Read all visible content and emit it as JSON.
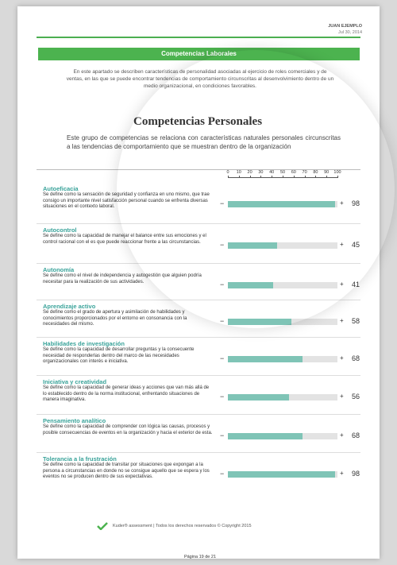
{
  "header": {
    "name": "JUAN EJEMPLO",
    "date": "Jul 30, 2014"
  },
  "banner": "Competencias Laborales",
  "intro": "En este apartado se describen características de personalidad asociadas al ejercicio de roles comerciales y de ventas, en las que se puede encontrar tendencias de comportamiento circunscritas al desenvolvimiento dentro de un medio organizacional, en condiciones favorables.",
  "section": {
    "title": "Competencias Personales",
    "description": "Este grupo de competencias se relaciona con características naturales personales circunscritas a las tendencias de comportamiento que se muestran dentro de la organización"
  },
  "scale": {
    "min": 0,
    "max": 100,
    "ticks": [
      0,
      10,
      20,
      30,
      40,
      50,
      60,
      70,
      80,
      90,
      100
    ],
    "minus": "−",
    "plus": "+"
  },
  "items": [
    {
      "name": "Autoeficacia",
      "description": "Se define como la sensación de seguridad y confianza en uno mismo, que trae consigo un importante nivel satisfacción personal cuando se enfrenta diversas situaciones en el contexto laboral.",
      "value": 98
    },
    {
      "name": "Autocontrol",
      "description": "Se define como la capacidad de manejar el balance entre sus emociones y el control racional con el es que puede reaccionar frente a las circunstancias.",
      "value": 45
    },
    {
      "name": "Autonomía",
      "description": "Se define como el nivel de independencia y autogestión que alguien podría necesitar para la realización de sus actividades.",
      "value": 41
    },
    {
      "name": "Aprendizaje activo",
      "description": "Se define como el grado de apertura y asimilación de habilidades y conocimientos proporcionados por el entorno en consonancia con la necesidades del mismo.",
      "value": 58
    },
    {
      "name": "Habilidades de investigación",
      "description": "Se define como la capacidad de desarrollar preguntas y la consecuente necesidad de responderlas dentro del marco de las necesidades organizacionales con interés e iniciativa.",
      "value": 68
    },
    {
      "name": "Iniciativa y creatividad",
      "description": "Se define como la capacidad de generar ideas y acciones que van más allá de lo establecido dentro de la norma institucional, enfrentando situaciones de manera imaginativa.",
      "value": 56
    },
    {
      "name": "Pensamiento analítico",
      "description": "Se define como la capacidad de comprender con lógica las causas, procesos y posible consecuencias de eventos en la organización y hacia el exterior de esta.",
      "value": 68
    },
    {
      "name": "Tolerancia a la frustración",
      "description": "Se define como la capacidad de transitar por situaciones que expongan a la persona a circunstancias en donde no se consigue aquello que se espera y los eventos no se producen dentro de sus expectativas.",
      "value": 98
    }
  ],
  "footer": {
    "text": "Kuder® assessment  |  Todos los derechos reservados © Copyright 2015",
    "page": "Página 19 de 21"
  }
}
